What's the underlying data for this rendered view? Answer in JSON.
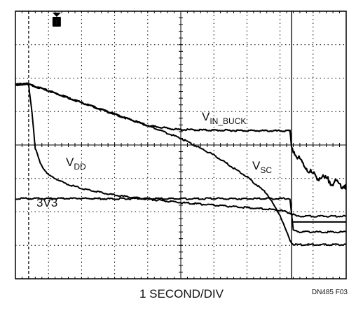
{
  "chart_data": {
    "type": "line",
    "title": "",
    "xlabel": "1 SECOND/DIV",
    "ylabel": "",
    "xlim": [
      0,
      10
    ],
    "ylim": [
      -4,
      4
    ],
    "grid": true,
    "note": "DN485 F03",
    "trigger_marker": "T",
    "series": [
      {
        "name": "VIN_BUCK",
        "label_main": "V",
        "label_sub": "IN_BUCK",
        "x": [
          0,
          0.3,
          0.6,
          1,
          2,
          3,
          4,
          4.9,
          5,
          6,
          7,
          8,
          8.3,
          8.35,
          8.5,
          9,
          10
        ],
        "y": [
          1.8,
          1.85,
          1.75,
          1.62,
          1.27,
          0.92,
          0.58,
          0.46,
          0.46,
          0.44,
          0.43,
          0.42,
          0.42,
          -0.05,
          -0.35,
          -0.9,
          -1.25
        ]
      },
      {
        "name": "VSC",
        "label_main": "V",
        "label_sub": "SC",
        "x": [
          0,
          0.3,
          0.6,
          1,
          2,
          3,
          4,
          5,
          6,
          7,
          7.6,
          8,
          8.3,
          8.4,
          8.6,
          10
        ],
        "y": [
          1.8,
          1.85,
          1.75,
          1.62,
          1.27,
          0.92,
          0.58,
          0.2,
          -0.3,
          -0.95,
          -1.45,
          -2.1,
          -2.85,
          -2.98,
          -2.98,
          -2.98
        ]
      },
      {
        "name": "VDD",
        "label_main": "V",
        "label_sub": "DD",
        "x": [
          0,
          0.4,
          0.5,
          0.6,
          0.75,
          1,
          1.5,
          2,
          3,
          4,
          5,
          6,
          7,
          8,
          8.3,
          8.5,
          10
        ],
        "y": [
          1.8,
          1.8,
          1.0,
          -0.1,
          -0.55,
          -0.9,
          -1.15,
          -1.3,
          -1.5,
          -1.62,
          -1.72,
          -1.8,
          -1.87,
          -1.95,
          -2.03,
          -2.13,
          -2.13
        ]
      },
      {
        "name": "3V3",
        "label_main": "3V3",
        "label_sub": "",
        "x": [
          0,
          1,
          2,
          3,
          4,
          5,
          6,
          7,
          8,
          8.3,
          8.4,
          8.6,
          10
        ],
        "y": [
          -1.6,
          -1.6,
          -1.6,
          -1.61,
          -1.6,
          -1.61,
          -1.6,
          -1.61,
          -1.6,
          -1.6,
          -2.55,
          -2.6,
          -2.6
        ]
      }
    ]
  }
}
